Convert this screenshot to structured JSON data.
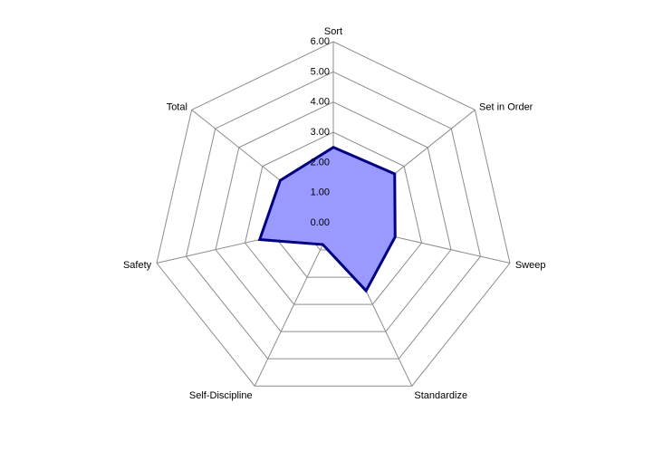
{
  "chart_data": {
    "type": "radar",
    "title": "",
    "categories": [
      "Sort",
      "Set in Order",
      "Sweep",
      "Standardize",
      "Self-Discipline",
      "Safety",
      "Total"
    ],
    "series": [
      {
        "values": [
          2.5,
          2.6,
          2.1,
          2.5,
          0.8,
          2.5,
          2.25
        ]
      }
    ],
    "rlim": [
      0,
      6
    ],
    "ticks": [
      "0.00",
      "1.00",
      "2.00",
      "3.00",
      "4.00",
      "5.00",
      "6.00"
    ],
    "grid": true,
    "legend": "none",
    "colors": {
      "fill": "#9999ff",
      "stroke": "#000080",
      "grid": "#8c8c8c"
    }
  }
}
